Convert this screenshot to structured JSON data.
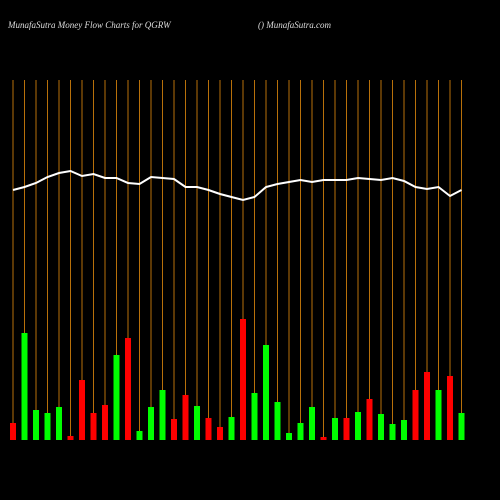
{
  "chart_data": {
    "type": "moneyflow",
    "title": "MunafaSutra  Money Flow  Charts for QGRW",
    "subtitle": "() MunafaSutra.com",
    "ylim": [
      0,
      440
    ],
    "line_color": "#ffffff",
    "line": [
      250,
      253,
      257,
      263,
      267,
      269,
      264,
      266,
      262,
      262,
      257,
      256,
      263,
      262,
      261,
      253,
      253,
      250,
      246,
      243,
      240,
      243,
      253,
      256,
      258,
      260,
      258,
      260,
      260,
      260,
      262,
      261,
      260,
      262,
      259,
      253,
      251,
      253,
      244,
      250
    ],
    "values": [
      17,
      107,
      30,
      27,
      33,
      4,
      60,
      27,
      35,
      85,
      102,
      9,
      33,
      50,
      21,
      45,
      34,
      22,
      13,
      23,
      121,
      47,
      95,
      38,
      7,
      17,
      33,
      3,
      22,
      22,
      28,
      41,
      26,
      16,
      20,
      50,
      68,
      50,
      64,
      27
    ],
    "colors": [
      "#ff0000",
      "#00ff00",
      "#00ff00",
      "#00ff00",
      "#00ff00",
      "#ff0000",
      "#ff0000",
      "#ff0000",
      "#ff0000",
      "#00ff00",
      "#ff0000",
      "#00ff00",
      "#00ff00",
      "#00ff00",
      "#ff0000",
      "#ff0000",
      "#00ff00",
      "#ff0000",
      "#ff0000",
      "#00ff00",
      "#ff0000",
      "#00ff00",
      "#00ff00",
      "#00ff00",
      "#00ff00",
      "#00ff00",
      "#00ff00",
      "#ff0000",
      "#00ff00",
      "#ff0000",
      "#00ff00",
      "#ff0000",
      "#00ff00",
      "#00ff00",
      "#00ff00",
      "#ff0000",
      "#ff0000",
      "#00ff00",
      "#ff0000",
      "#00ff00"
    ]
  }
}
